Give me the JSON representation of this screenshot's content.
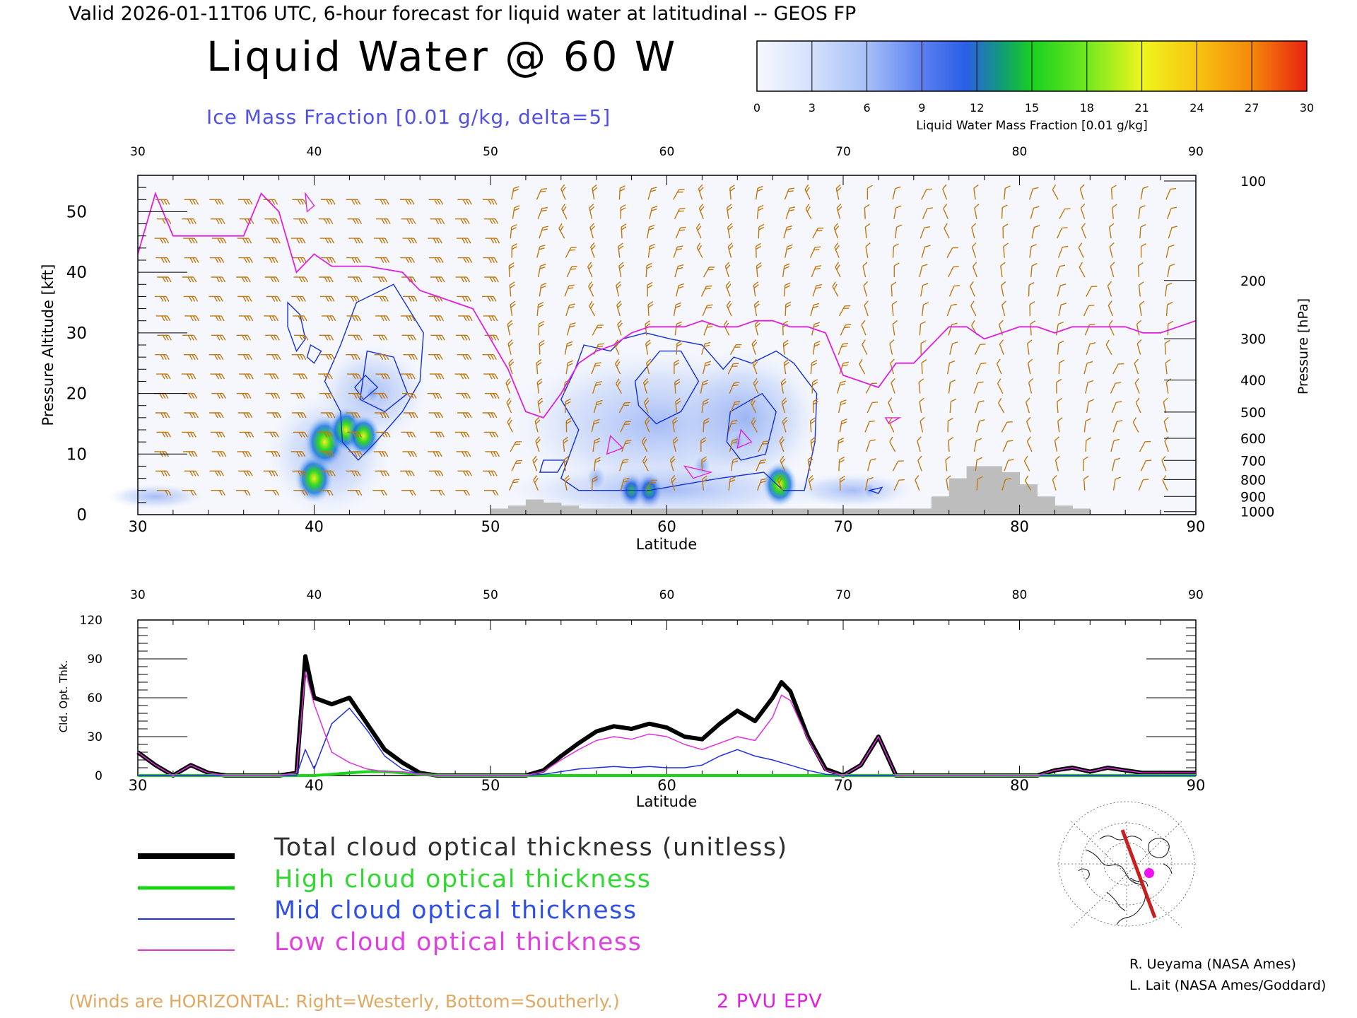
{
  "header": {
    "valid_line": "Valid 2026-01-11T06 UTC, 6-hour forecast for liquid water at latitudinal -- GEOS FP",
    "title": "Liquid Water @ 60 W",
    "subtitle": "Ice Mass Fraction [0.01 g/kg, delta=5]"
  },
  "colorbar": {
    "ticks": [
      "0",
      "3",
      "6",
      "9",
      "12",
      "15",
      "18",
      "21",
      "24",
      "27",
      "30"
    ],
    "label": "Liquid Water Mass Fraction [0.01 g/kg]",
    "colors": [
      "#f4f6fd",
      "#c8d8fb",
      "#9dbaf6",
      "#5a7df0",
      "#1060e0",
      "#10a04a",
      "#22d21e",
      "#a4ef1e",
      "#f2f21e",
      "#f7b20e",
      "#f2780a",
      "#e8200e"
    ]
  },
  "colors": {
    "wind_barb": "#c07810",
    "epv_line": "#e020e0",
    "ice_contour": "#1430d8",
    "terrain": "#bdbdbd",
    "total_line": "#000000",
    "high_line": "#1ad31a",
    "mid_line": "#2030e0",
    "low_line": "#e030e0"
  },
  "cross_section": {
    "top_ticks": [
      "30",
      "40",
      "50",
      "60",
      "70",
      "80",
      "90"
    ],
    "bottom_ticks": [
      "30",
      "40",
      "50",
      "60",
      "70",
      "80",
      "90"
    ],
    "xlabel": "Latitude",
    "left_ticks": [
      "0",
      "10",
      "20",
      "30",
      "40",
      "50"
    ],
    "left_label": "Pressure Altitude [kft]",
    "right_ticks": [
      "100",
      "200",
      "300",
      "400",
      "500",
      "600",
      "700",
      "800",
      "900",
      "1000"
    ],
    "right_label": "Pressure [hPa]"
  },
  "chart_data": [
    {
      "type": "heatmap",
      "title": "Liquid Water @ 60 W",
      "xlabel": "Latitude",
      "ylabel": "Pressure Altitude [kft]",
      "xlim": [
        30,
        90
      ],
      "ylim": [
        0,
        56
      ],
      "liquid_water_blobs": [
        {
          "lat": 40.0,
          "kft": 6,
          "value": 18
        },
        {
          "lat": 40.6,
          "kft": 12,
          "value": 20
        },
        {
          "lat": 41.8,
          "kft": 14,
          "value": 16
        },
        {
          "lat": 42.8,
          "kft": 13,
          "value": 15
        },
        {
          "lat": 43.3,
          "kft": 20,
          "value": 5
        },
        {
          "lat": 58.0,
          "kft": 4,
          "value": 11
        },
        {
          "lat": 59.0,
          "kft": 4,
          "value": 12
        },
        {
          "lat": 62.0,
          "kft": 8,
          "value": 6
        },
        {
          "lat": 64.0,
          "kft": 12,
          "value": 5
        },
        {
          "lat": 66.4,
          "kft": 5,
          "value": 16
        },
        {
          "lat": 56.0,
          "kft": 6,
          "value": 7
        },
        {
          "lat": 71.5,
          "kft": 4,
          "value": 3
        }
      ],
      "epv_2pvu_line": {
        "lat": [
          30,
          31,
          32,
          34,
          36,
          37,
          38,
          39,
          40,
          41,
          42,
          43,
          45,
          46,
          47,
          49,
          50,
          51,
          52,
          53,
          54,
          55,
          56,
          57,
          58,
          59,
          60,
          61,
          62,
          63,
          64,
          65,
          66,
          67,
          68,
          69,
          70,
          71,
          72,
          73,
          74,
          75,
          76,
          77,
          78,
          79,
          80,
          81,
          82,
          83,
          84,
          85,
          86,
          87,
          88,
          89,
          90
        ],
        "kft": [
          43,
          53,
          46,
          46,
          46,
          53,
          50,
          40,
          43,
          41,
          41,
          41,
          40,
          37,
          36,
          34,
          29,
          24,
          17,
          16,
          20,
          25,
          27,
          28,
          30,
          31,
          31,
          31,
          32,
          31,
          31,
          32,
          32,
          31,
          31,
          30,
          23,
          22,
          21,
          25,
          25,
          28,
          31,
          31,
          29,
          30,
          31,
          31,
          30,
          31,
          31,
          31,
          31,
          30,
          30,
          31,
          32
        ]
      },
      "terrain": {
        "lat": [
          50,
          51,
          52,
          53,
          54,
          55,
          56,
          57,
          58,
          59,
          60,
          61,
          62,
          63,
          64,
          65,
          66,
          67,
          68,
          69,
          70,
          71,
          72,
          73,
          75,
          76,
          77,
          78,
          79,
          80,
          81,
          82,
          83,
          84,
          85,
          86,
          87,
          88,
          89,
          90
        ],
        "kft": [
          1,
          1.5,
          2.5,
          2,
          1.5,
          1,
          1,
          1,
          1,
          1,
          1,
          1,
          1,
          1,
          1,
          1,
          1,
          1,
          1,
          1,
          1,
          1,
          1,
          1,
          3,
          6,
          8,
          8,
          7,
          5,
          3,
          1.5,
          1,
          0,
          0,
          0,
          0,
          0,
          0,
          0
        ]
      },
      "series": [
        {
          "name": "Ice Mass Fraction [0.01 g/kg, delta=5]"
        },
        {
          "name": "2 PVU EPV"
        }
      ]
    },
    {
      "type": "line",
      "xlabel": "Latitude",
      "ylabel": "Cld. Opt. Thk.",
      "xlim": [
        30,
        90
      ],
      "ylim": [
        0,
        120
      ],
      "x": [
        30,
        31,
        32,
        33,
        34,
        35,
        36,
        37,
        38,
        39,
        39.5,
        40,
        41,
        42,
        43,
        44,
        45,
        46,
        47,
        48,
        49,
        50,
        51,
        52,
        53,
        54,
        55,
        56,
        57,
        58,
        59,
        60,
        61,
        62,
        63,
        64,
        65,
        66,
        66.5,
        67,
        68,
        69,
        70,
        71,
        72,
        73,
        74,
        75,
        76,
        77,
        78,
        79,
        80,
        81,
        82,
        83,
        84,
        85,
        86,
        87,
        88,
        89,
        90
      ],
      "series": [
        {
          "name": "Total cloud optical thickness (unitless)",
          "values": [
            18,
            8,
            0,
            8,
            2,
            0,
            0,
            0,
            0,
            2,
            92,
            60,
            55,
            60,
            40,
            20,
            10,
            2,
            0,
            0,
            0,
            0,
            0,
            0,
            4,
            15,
            25,
            34,
            38,
            36,
            40,
            37,
            30,
            28,
            40,
            50,
            42,
            60,
            72,
            65,
            30,
            5,
            0,
            8,
            30,
            0,
            0,
            0,
            0,
            0,
            0,
            0,
            0,
            0,
            4,
            6,
            3,
            6,
            4,
            2,
            2,
            2,
            2
          ]
        },
        {
          "name": "High cloud optical thickness",
          "values": [
            0,
            0,
            0,
            0,
            0,
            0,
            0,
            0,
            0,
            0,
            0,
            0,
            1,
            2,
            3,
            3,
            2,
            1,
            0,
            0,
            0,
            0,
            0,
            0,
            0,
            0,
            0,
            0,
            0,
            0,
            0,
            0,
            0,
            0,
            0,
            0,
            0,
            0,
            0,
            0,
            0,
            0,
            0,
            0,
            0,
            0,
            0,
            0,
            0,
            0,
            0,
            0,
            0,
            0,
            0,
            0,
            0,
            0,
            0,
            0,
            0,
            0,
            0
          ]
        },
        {
          "name": "Mid cloud optical thickness",
          "values": [
            0,
            0,
            0,
            0,
            0,
            0,
            0,
            0,
            0,
            0,
            20,
            5,
            40,
            52,
            35,
            15,
            5,
            1,
            0,
            0,
            0,
            0,
            0,
            0,
            1,
            3,
            5,
            6,
            7,
            6,
            7,
            6,
            6,
            8,
            15,
            20,
            15,
            12,
            10,
            8,
            4,
            1,
            0,
            0,
            0,
            0,
            0,
            0,
            0,
            0,
            0,
            0,
            0,
            0,
            0,
            0,
            0,
            0,
            0,
            0,
            0,
            0,
            0
          ]
        },
        {
          "name": "Low cloud optical thickness",
          "values": [
            18,
            8,
            0,
            8,
            2,
            0,
            0,
            0,
            0,
            2,
            80,
            55,
            18,
            10,
            5,
            3,
            3,
            1,
            0,
            0,
            0,
            0,
            0,
            0,
            3,
            12,
            20,
            27,
            30,
            28,
            32,
            30,
            24,
            20,
            25,
            30,
            27,
            45,
            62,
            58,
            28,
            4,
            0,
            8,
            30,
            0,
            0,
            0,
            0,
            0,
            0,
            0,
            0,
            0,
            4,
            6,
            3,
            6,
            4,
            2,
            2,
            2,
            2
          ]
        }
      ],
      "ticks_x": [
        "30",
        "40",
        "50",
        "60",
        "70",
        "80",
        "90"
      ],
      "ticks_y": [
        "0",
        "30",
        "60",
        "90",
        "120"
      ]
    }
  ],
  "legend": {
    "total": "Total cloud optical thickness (unitless)",
    "high": "High cloud optical thickness",
    "mid": "Mid cloud optical thickness",
    "low": "Low cloud optical thickness"
  },
  "footer": {
    "winds_note": "(Winds are HORIZONTAL: Right=Westerly, Bottom=Southerly.)",
    "epv_note": "2 PVU EPV",
    "credit1": "R. Ueyama (NASA Ames)",
    "credit2": "L. Lait (NASA Ames/Goddard)"
  }
}
